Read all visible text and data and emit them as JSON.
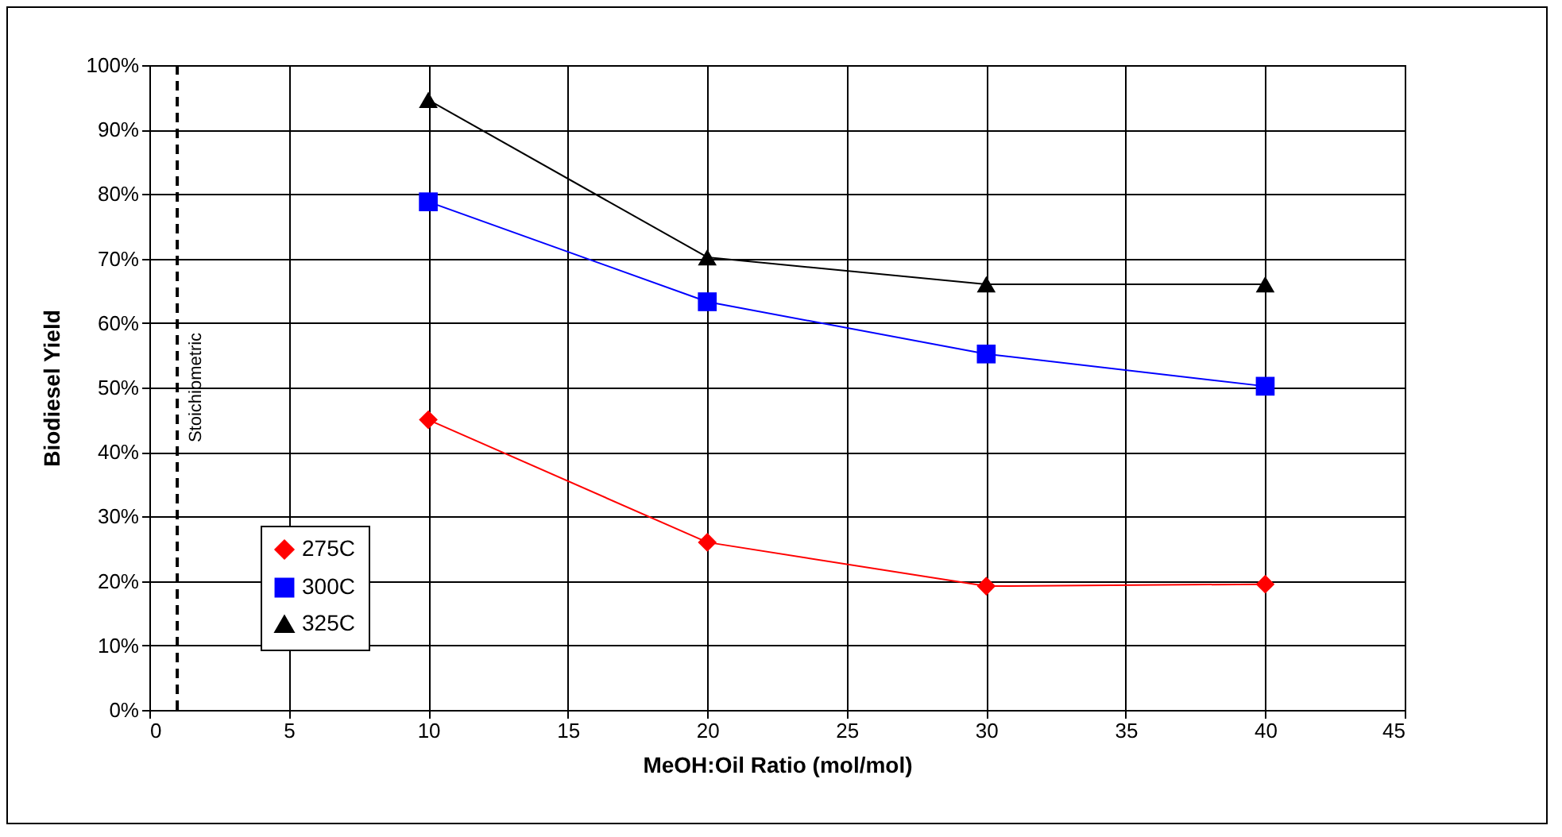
{
  "chart_data": {
    "type": "line",
    "xlabel": "MeOH:Oil Ratio (mol/mol)",
    "ylabel": "Biodiesel Yield",
    "x": [
      10,
      20,
      30,
      40
    ],
    "series": [
      {
        "name": "275C",
        "color": "#ff0000",
        "marker": "diamond",
        "values": [
          45,
          26,
          19.2,
          19.5
        ]
      },
      {
        "name": "300C",
        "color": "#0000ff",
        "marker": "square",
        "values": [
          78.8,
          63.3,
          55.2,
          50.2
        ]
      },
      {
        "name": "325C",
        "color": "#000000",
        "marker": "triangle",
        "values": [
          94.6,
          70.2,
          66,
          66
        ]
      }
    ],
    "xlim": [
      0,
      45
    ],
    "xticks": [
      0,
      5,
      10,
      15,
      20,
      25,
      30,
      35,
      40,
      45
    ],
    "ylim": [
      0,
      100
    ],
    "yticks": [
      {
        "value": 0,
        "label": "0%"
      },
      {
        "value": 10,
        "label": "10%"
      },
      {
        "value": 20,
        "label": "20%"
      },
      {
        "value": 30,
        "label": "30%"
      },
      {
        "value": 40,
        "label": "40%"
      },
      {
        "value": 50,
        "label": "50%"
      },
      {
        "value": 60,
        "label": "60%"
      },
      {
        "value": 70,
        "label": "70%"
      },
      {
        "value": 80,
        "label": "80%"
      },
      {
        "value": 90,
        "label": "90%"
      },
      {
        "value": 100,
        "label": "100%"
      }
    ],
    "ref_lines": [
      {
        "axis": "x",
        "value": 1,
        "label": "Stoichiometric",
        "color": "#000000",
        "line_style": "dashed"
      }
    ],
    "grid": true,
    "legend": "bottom left",
    "line_style": "solid"
  }
}
